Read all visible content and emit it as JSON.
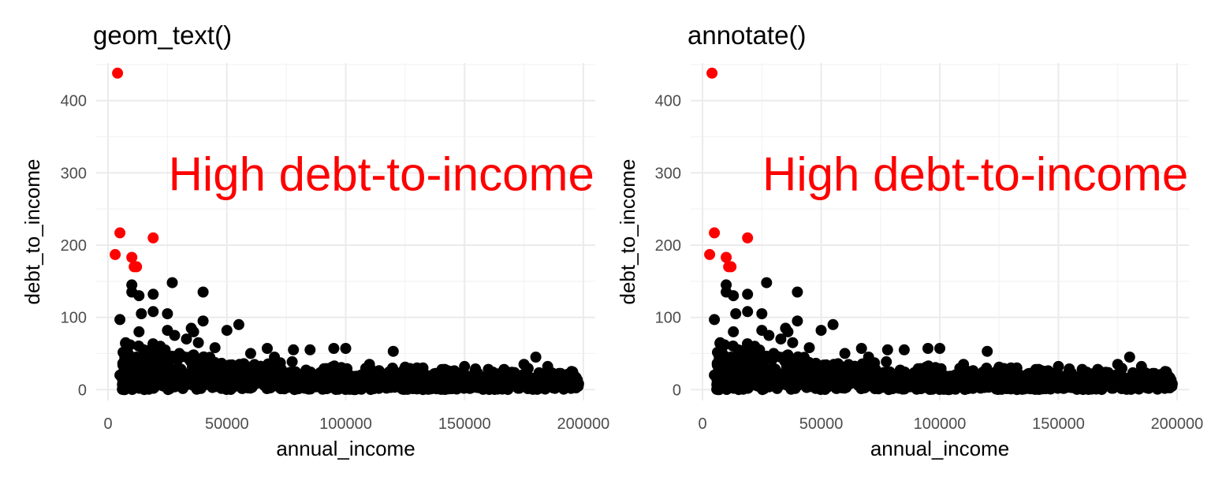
{
  "chart_data": [
    {
      "type": "scatter",
      "title": "geom_text()",
      "xlabel": "annual_income",
      "ylabel": "debt_to_income",
      "xlim": [
        -5000,
        205000
      ],
      "ylim": [
        -15,
        452
      ],
      "x_ticks": [
        0,
        50000,
        100000,
        150000,
        200000
      ],
      "x_tick_labels": [
        "0",
        "50000",
        "100000",
        "150000",
        "200000"
      ],
      "y_ticks": [
        0,
        100,
        200,
        300,
        400
      ],
      "y_tick_labels": [
        "0",
        "100",
        "200",
        "300",
        "400"
      ],
      "grid": true,
      "annotation": {
        "text": "High debt-to-income",
        "x": 115000,
        "y": 300,
        "color": "#ff0000"
      },
      "series": [
        {
          "color": "#ff0000",
          "points": [
            [
              4000,
              438
            ],
            [
              5000,
              217
            ],
            [
              19000,
              210
            ],
            [
              3000,
              187
            ],
            [
              10000,
              183
            ],
            [
              11000,
              170
            ],
            [
              12000,
              170
            ]
          ]
        },
        {
          "color": "#000000",
          "points": [
            [
              10000,
              145
            ],
            [
              27000,
              148
            ],
            [
              40000,
              135
            ],
            [
              10000,
              135
            ],
            [
              13000,
              130
            ],
            [
              19000,
              132
            ],
            [
              14000,
              105
            ],
            [
              19000,
              108
            ],
            [
              25000,
              105
            ],
            [
              5000,
              97
            ],
            [
              40000,
              95
            ],
            [
              55000,
              90
            ],
            [
              50000,
              82
            ],
            [
              35000,
              85
            ],
            [
              13000,
              80
            ],
            [
              36000,
              80
            ],
            [
              25000,
              82
            ],
            [
              100000,
              57
            ],
            [
              120000,
              53
            ],
            [
              95000,
              57
            ],
            [
              180000,
              45
            ],
            [
              85000,
              55
            ],
            [
              78000,
              55
            ],
            [
              67000,
              57
            ],
            [
              5000,
              20
            ],
            [
              7000,
              0
            ],
            [
              9000,
              33
            ],
            [
              10000,
              10
            ],
            [
              15000,
              55
            ],
            [
              20000,
              40
            ],
            [
              22000,
              60
            ],
            [
              30000,
              50
            ],
            [
              33000,
              70
            ],
            [
              45000,
              58
            ],
            [
              60000,
              50
            ],
            [
              70000,
              45
            ],
            [
              110000,
              35
            ],
            [
              130000,
              30
            ],
            [
              150000,
              32
            ],
            [
              160000,
              28
            ],
            [
              175000,
              35
            ],
            [
              185000,
              32
            ],
            [
              195000,
              25
            ],
            [
              198000,
              8
            ],
            [
              192000,
              12
            ],
            [
              170000,
              10
            ],
            [
              140000,
              8
            ],
            [
              125000,
              12
            ],
            [
              105000,
              10
            ],
            [
              90000,
              5
            ],
            [
              75000,
              15
            ],
            [
              65000,
              20
            ],
            [
              55000,
              25
            ],
            [
              42000,
              30
            ],
            [
              38000,
              65
            ],
            [
              28000,
              75
            ],
            [
              12000,
              45
            ]
          ]
        }
      ]
    },
    {
      "type": "scatter",
      "title": "annotate()",
      "xlabel": "annual_income",
      "ylabel": "debt_to_income",
      "xlim": [
        -5000,
        205000
      ],
      "ylim": [
        -15,
        452
      ],
      "x_ticks": [
        0,
        50000,
        100000,
        150000,
        200000
      ],
      "x_tick_labels": [
        "0",
        "50000",
        "100000",
        "150000",
        "200000"
      ],
      "y_ticks": [
        0,
        100,
        200,
        300,
        400
      ],
      "y_tick_labels": [
        "0",
        "100",
        "200",
        "300",
        "400"
      ],
      "grid": true,
      "annotation": {
        "text": "High debt-to-income",
        "x": 115000,
        "y": 300,
        "color": "#ff0000"
      },
      "series": [
        {
          "color": "#ff0000",
          "points": [
            [
              4000,
              438
            ],
            [
              5000,
              217
            ],
            [
              19000,
              210
            ],
            [
              3000,
              187
            ],
            [
              10000,
              183
            ],
            [
              11000,
              170
            ],
            [
              12000,
              170
            ]
          ]
        },
        {
          "color": "#000000",
          "points": [
            [
              10000,
              145
            ],
            [
              27000,
              148
            ],
            [
              40000,
              135
            ],
            [
              10000,
              135
            ],
            [
              13000,
              130
            ],
            [
              19000,
              132
            ],
            [
              14000,
              105
            ],
            [
              19000,
              108
            ],
            [
              25000,
              105
            ],
            [
              5000,
              97
            ],
            [
              40000,
              95
            ],
            [
              55000,
              90
            ],
            [
              50000,
              82
            ],
            [
              35000,
              85
            ],
            [
              13000,
              80
            ],
            [
              36000,
              80
            ],
            [
              25000,
              82
            ],
            [
              100000,
              57
            ],
            [
              120000,
              53
            ],
            [
              95000,
              57
            ],
            [
              180000,
              45
            ],
            [
              85000,
              55
            ],
            [
              78000,
              55
            ],
            [
              67000,
              57
            ],
            [
              5000,
              20
            ],
            [
              7000,
              0
            ],
            [
              9000,
              33
            ],
            [
              10000,
              10
            ],
            [
              15000,
              55
            ],
            [
              20000,
              40
            ],
            [
              22000,
              60
            ],
            [
              30000,
              50
            ],
            [
              33000,
              70
            ],
            [
              45000,
              58
            ],
            [
              60000,
              50
            ],
            [
              70000,
              45
            ],
            [
              110000,
              35
            ],
            [
              130000,
              30
            ],
            [
              150000,
              32
            ],
            [
              160000,
              28
            ],
            [
              175000,
              35
            ],
            [
              185000,
              32
            ],
            [
              195000,
              25
            ],
            [
              198000,
              8
            ],
            [
              192000,
              12
            ],
            [
              170000,
              10
            ],
            [
              140000,
              8
            ],
            [
              125000,
              12
            ],
            [
              105000,
              10
            ],
            [
              90000,
              5
            ],
            [
              75000,
              15
            ],
            [
              65000,
              20
            ],
            [
              55000,
              25
            ],
            [
              42000,
              30
            ],
            [
              38000,
              65
            ],
            [
              28000,
              75
            ],
            [
              12000,
              45
            ]
          ]
        }
      ]
    }
  ]
}
